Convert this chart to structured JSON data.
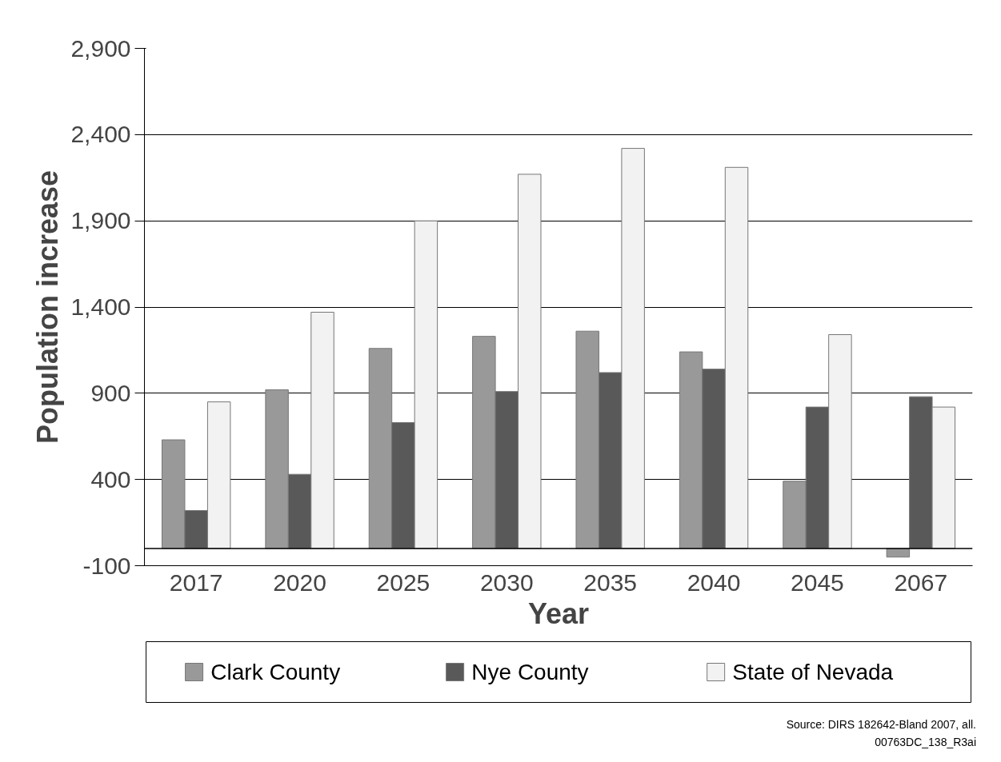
{
  "chart_data": {
    "type": "bar",
    "xlabel": "Year",
    "ylabel": "Population increase",
    "categories": [
      "2017",
      "2020",
      "2025",
      "2030",
      "2035",
      "2040",
      "2045",
      "2067"
    ],
    "series": [
      {
        "name": "Clark County",
        "color": "#999999",
        "values": [
          630,
          920,
          1160,
          1230,
          1260,
          1140,
          390,
          -50
        ]
      },
      {
        "name": "Nye County",
        "color": "#595959",
        "values": [
          220,
          430,
          730,
          910,
          1020,
          1040,
          820,
          880
        ]
      },
      {
        "name": "State of Nevada",
        "color": "#f2f2f2",
        "values": [
          850,
          1370,
          1900,
          2170,
          2320,
          2210,
          1240,
          820
        ]
      }
    ],
    "ylim": [
      -100,
      2900
    ],
    "yticks": [
      {
        "value": -100,
        "label": "-100"
      },
      400,
      900,
      {
        "value": 1400,
        "label": "1,400"
      },
      {
        "value": 1900,
        "label": "1,900"
      },
      {
        "value": 2400,
        "label": "2,400"
      },
      {
        "value": 2900,
        "label": "2,900"
      }
    ],
    "grid": "y",
    "legend": "bottom",
    "ref_lines": [
      {
        "axis": "y",
        "value": 0,
        "color": "#000000"
      }
    ],
    "annotations": [
      "Source:  DIRS 182642-Bland 2007, all.",
      "00763DC_138_R3ai"
    ]
  }
}
